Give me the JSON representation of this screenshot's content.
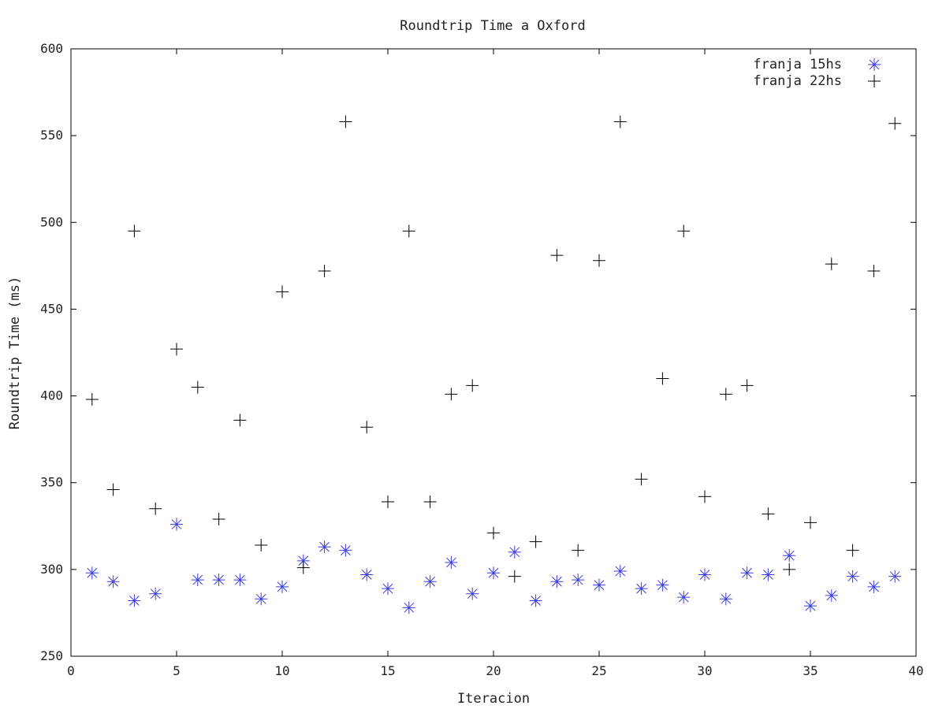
{
  "chart_data": {
    "type": "scatter",
    "title": "Roundtrip Time a Oxford",
    "xlabel": "Iteracion",
    "ylabel": "Roundtrip Time (ms)",
    "xlim": [
      0,
      40
    ],
    "ylim": [
      250,
      600
    ],
    "xticks": [
      0,
      5,
      10,
      15,
      20,
      25,
      30,
      35,
      40
    ],
    "yticks": [
      250,
      300,
      350,
      400,
      450,
      500,
      550,
      600
    ],
    "grid": false,
    "legend_position": "top-right",
    "series": [
      {
        "name": "franja 15hs",
        "marker": "asterisk",
        "color": "#3a3ae0",
        "points": [
          [
            1,
            298
          ],
          [
            2,
            293
          ],
          [
            3,
            282
          ],
          [
            4,
            286
          ],
          [
            5,
            326
          ],
          [
            6,
            294
          ],
          [
            7,
            294
          ],
          [
            8,
            294
          ],
          [
            9,
            283
          ],
          [
            10,
            290
          ],
          [
            11,
            305
          ],
          [
            12,
            313
          ],
          [
            13,
            311
          ],
          [
            14,
            297
          ],
          [
            15,
            289
          ],
          [
            16,
            278
          ],
          [
            17,
            293
          ],
          [
            18,
            304
          ],
          [
            19,
            286
          ],
          [
            20,
            298
          ],
          [
            21,
            310
          ],
          [
            22,
            282
          ],
          [
            23,
            293
          ],
          [
            24,
            294
          ],
          [
            25,
            291
          ],
          [
            26,
            299
          ],
          [
            27,
            289
          ],
          [
            28,
            291
          ],
          [
            29,
            284
          ],
          [
            30,
            297
          ],
          [
            31,
            283
          ],
          [
            32,
            298
          ],
          [
            33,
            297
          ],
          [
            34,
            308
          ],
          [
            35,
            279
          ],
          [
            36,
            285
          ],
          [
            37,
            296
          ],
          [
            38,
            290
          ],
          [
            39,
            296
          ]
        ]
      },
      {
        "name": "franja 22hs",
        "marker": "plus",
        "color": "#000000",
        "points": [
          [
            1,
            398
          ],
          [
            2,
            346
          ],
          [
            3,
            495
          ],
          [
            4,
            335
          ],
          [
            5,
            427
          ],
          [
            6,
            405
          ],
          [
            7,
            329
          ],
          [
            8,
            386
          ],
          [
            9,
            314
          ],
          [
            10,
            460
          ],
          [
            11,
            301
          ],
          [
            12,
            472
          ],
          [
            13,
            558
          ],
          [
            14,
            382
          ],
          [
            15,
            339
          ],
          [
            16,
            495
          ],
          [
            17,
            339
          ],
          [
            18,
            401
          ],
          [
            19,
            406
          ],
          [
            20,
            321
          ],
          [
            21,
            296
          ],
          [
            22,
            316
          ],
          [
            23,
            481
          ],
          [
            24,
            311
          ],
          [
            25,
            478
          ],
          [
            26,
            558
          ],
          [
            27,
            352
          ],
          [
            28,
            410
          ],
          [
            29,
            495
          ],
          [
            30,
            342
          ],
          [
            31,
            401
          ],
          [
            32,
            406
          ],
          [
            33,
            332
          ],
          [
            34,
            300
          ],
          [
            35,
            327
          ],
          [
            36,
            476
          ],
          [
            37,
            311
          ],
          [
            38,
            472
          ],
          [
            39,
            557
          ]
        ]
      }
    ]
  }
}
